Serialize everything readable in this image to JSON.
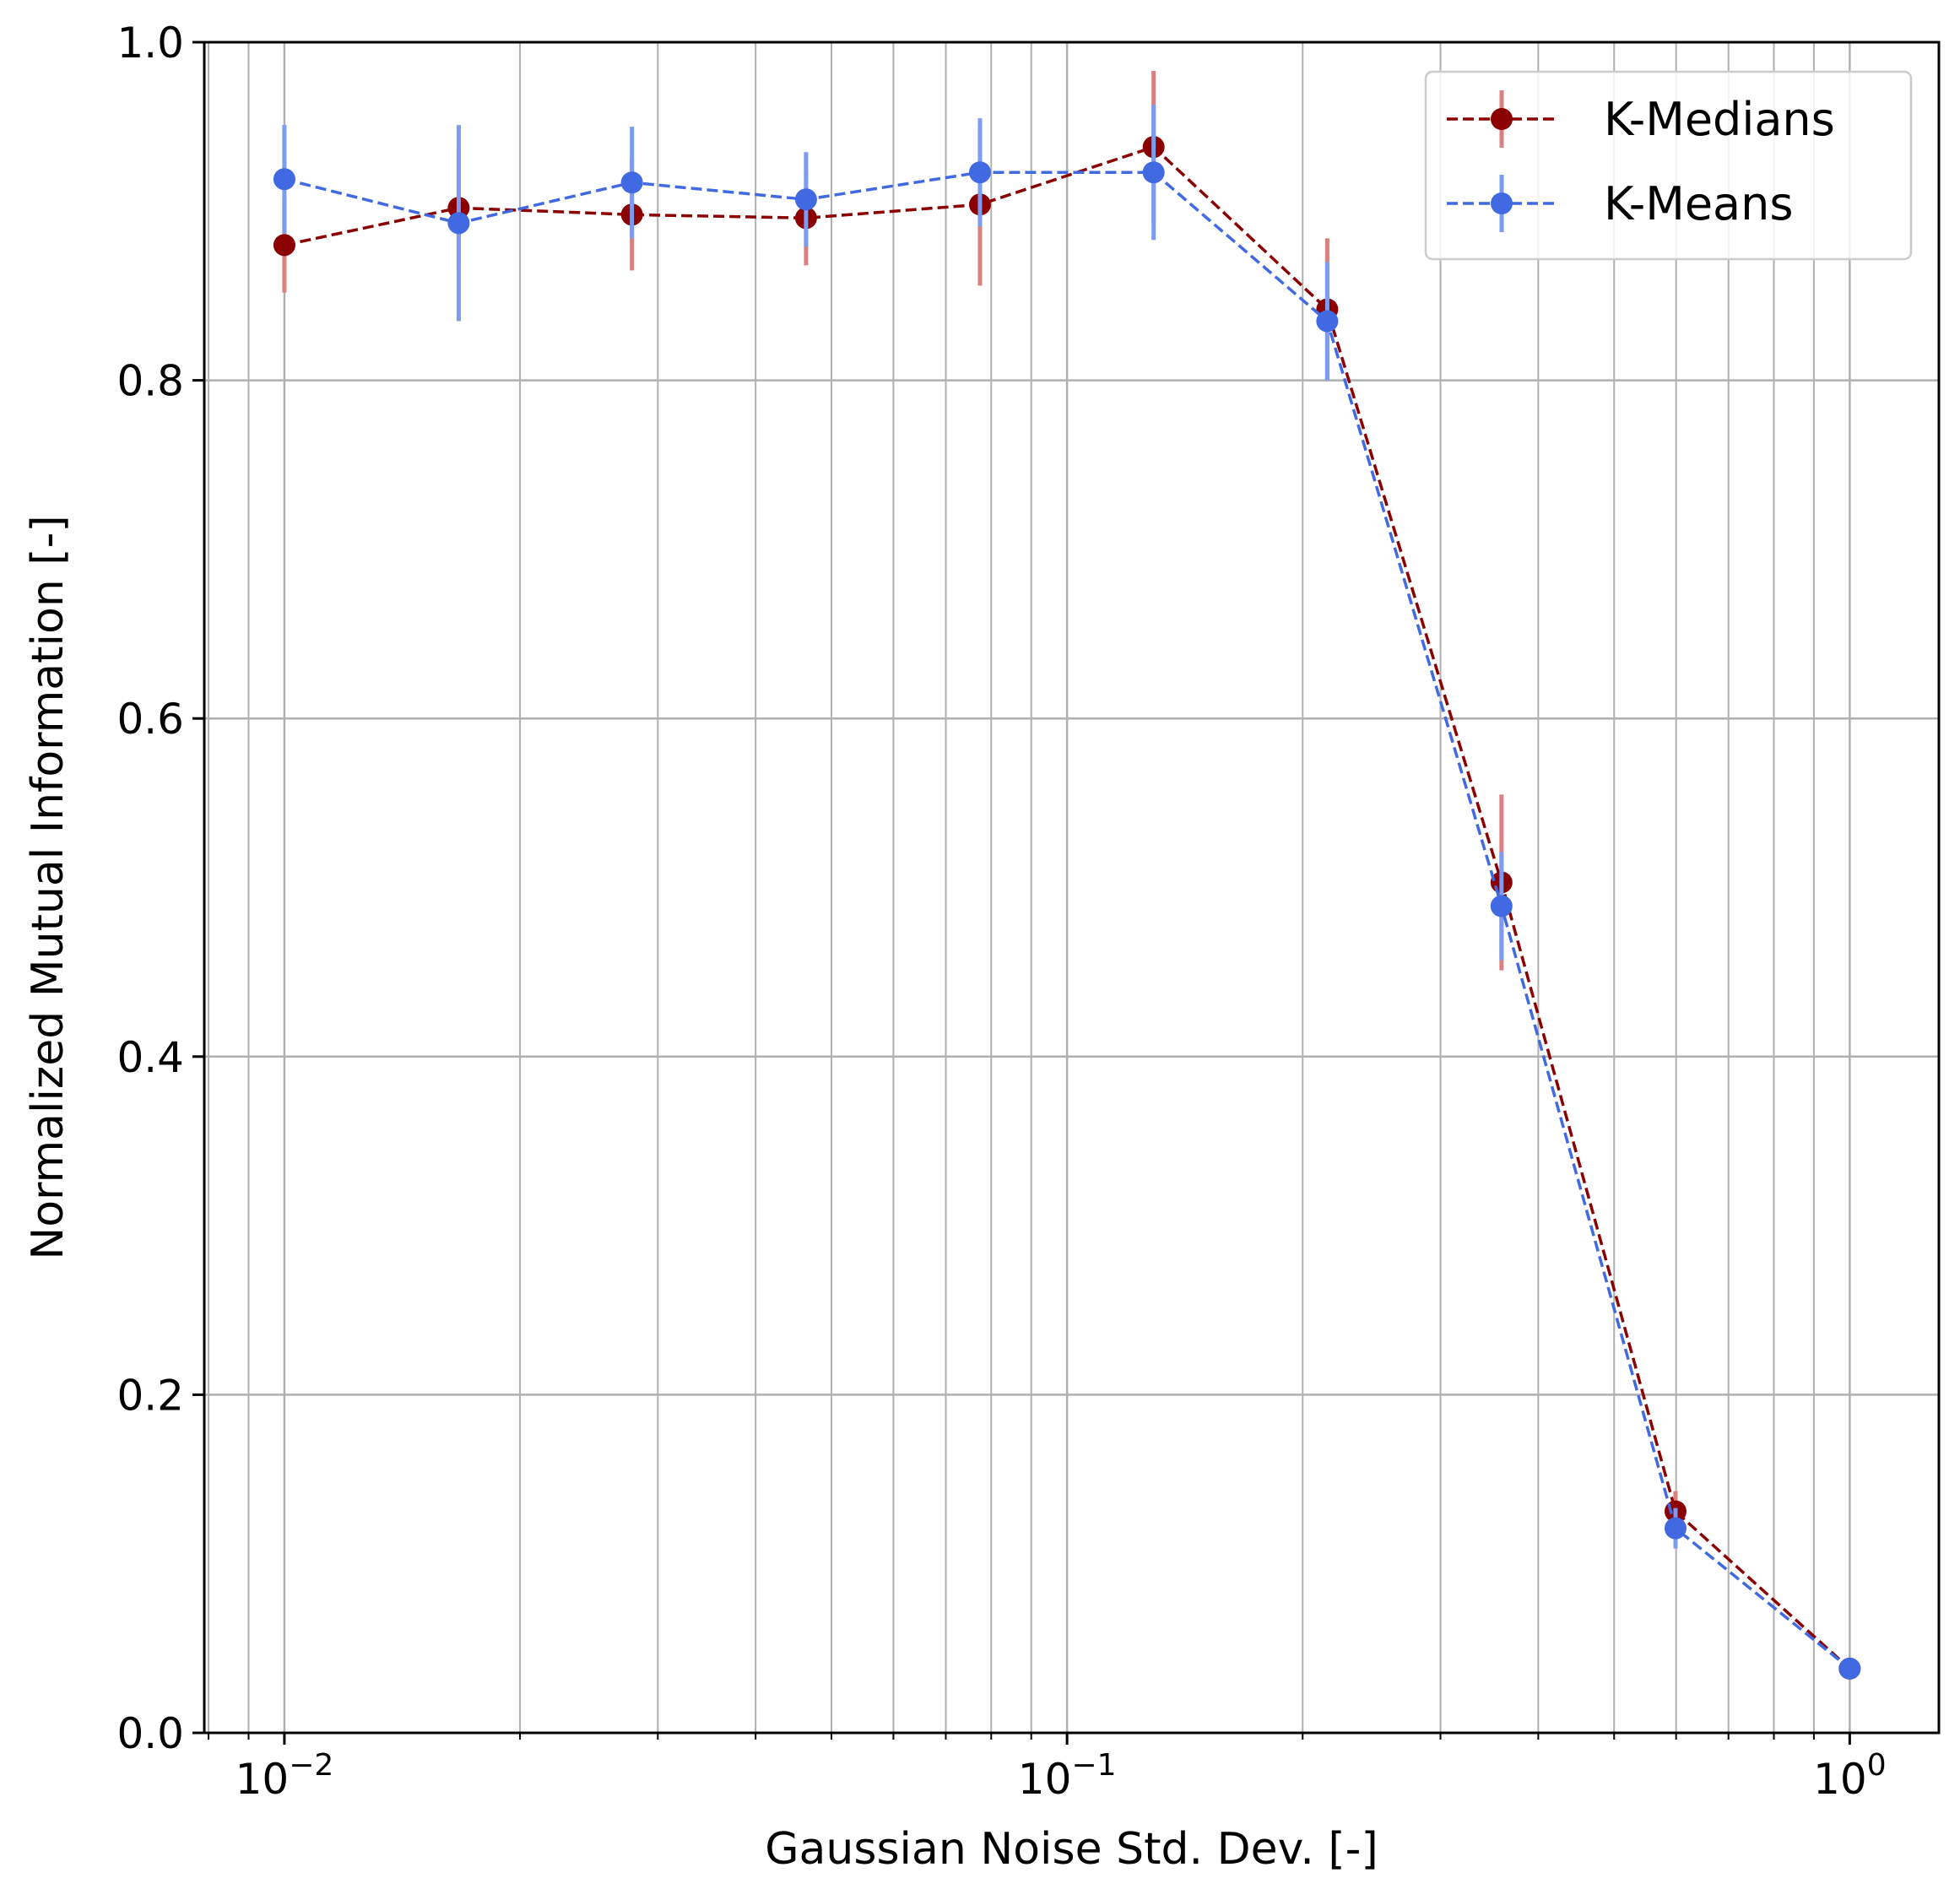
{
  "chart_data": {
    "type": "line",
    "title": "",
    "xlabel": "Gaussian Noise Std. Dev. [-]",
    "ylabel": "Normalized Mutual Information [-]",
    "xscale": "log",
    "xlim": [
      0.0079,
      1.3
    ],
    "ylim": [
      0.0,
      1.0
    ],
    "grid": true,
    "grid_minor_x": true,
    "legend_position": "top-right",
    "x_ticks": [
      {
        "base": "10",
        "exp": "−2",
        "value": 0.01
      },
      {
        "base": "10",
        "exp": "−1",
        "value": 0.1
      },
      {
        "base": "10",
        "exp": "0",
        "value": 1
      }
    ],
    "y_ticks": [
      {
        "label": "0.0",
        "value": 0.0
      },
      {
        "label": "0.2",
        "value": 0.2
      },
      {
        "label": "0.4",
        "value": 0.4
      },
      {
        "label": "0.6",
        "value": 0.6
      },
      {
        "label": "0.8",
        "value": 0.8
      },
      {
        "label": "1.0",
        "value": 1.0
      }
    ],
    "x": [
      0.01,
      0.0167,
      0.0278,
      0.0464,
      0.0774,
      0.129,
      0.215,
      0.359,
      0.599,
      1.0
    ],
    "series": [
      {
        "name": "K-Medians",
        "color": "#8b0000",
        "err_color": "#d98080",
        "values": [
          0.88,
          0.902,
          0.898,
          0.896,
          0.904,
          0.938,
          0.842,
          0.503,
          0.131,
          0.038
        ],
        "errors": [
          0.028,
          0.035,
          0.033,
          0.028,
          0.048,
          0.045,
          0.042,
          0.052,
          0.012,
          0.004
        ]
      },
      {
        "name": "K-Means",
        "color": "#4169e1",
        "err_color": "#7b9cf0",
        "values": [
          0.919,
          0.893,
          0.917,
          0.907,
          0.923,
          0.923,
          0.835,
          0.489,
          0.121,
          0.038
        ],
        "errors": [
          0.032,
          0.058,
          0.033,
          0.028,
          0.032,
          0.04,
          0.035,
          0.032,
          0.012,
          0.004
        ]
      }
    ]
  }
}
